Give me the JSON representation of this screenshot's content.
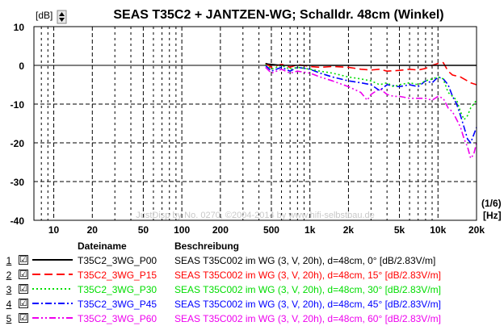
{
  "chart_data": {
    "type": "line",
    "title": "SEAS T35C2 + JANTZEN-WG; Schalldr. 48cm (Winkel)",
    "ylabel": "[dB]",
    "xlabel_unit": "(1/6)",
    "xlabel": "[Hz]",
    "watermark": "JustDisp by No. 0270, ©2004-2014 by www.hifi-selbstbau.de",
    "x_scale": "log",
    "xlim": [
      7,
      20000
    ],
    "ylim": [
      -40,
      10
    ],
    "grid": true,
    "y_ticks": [
      10,
      0,
      -10,
      -20,
      -30,
      -40
    ],
    "x_ticks": [
      {
        "v": 10,
        "t": "10"
      },
      {
        "v": 20,
        "t": "20"
      },
      {
        "v": 50,
        "t": "50"
      },
      {
        "v": 100,
        "t": "100"
      },
      {
        "v": 200,
        "t": "200"
      },
      {
        "v": 500,
        "t": "500"
      },
      {
        "v": 1000,
        "t": "1k"
      },
      {
        "v": 2000,
        "t": "2k"
      },
      {
        "v": 5000,
        "t": "5k"
      },
      {
        "v": 10000,
        "t": "10k"
      },
      {
        "v": 20000,
        "t": "20k"
      }
    ],
    "series": [
      {
        "name": "T35C2_3WG_P00",
        "color": "#000000",
        "dash": "solid",
        "x": [
          450,
          480,
          520,
          560,
          600,
          700,
          800,
          900,
          1000,
          1200,
          1500,
          2000,
          3000,
          5000,
          7000,
          9000,
          10000,
          11000,
          12000,
          15000,
          20000
        ],
        "y": [
          0.5,
          0.3,
          0.2,
          0.1,
          0,
          0,
          0,
          0,
          0,
          0,
          0,
          0,
          0,
          0,
          0,
          0,
          0,
          0,
          0,
          0,
          0
        ]
      },
      {
        "name": "T35C2_3WG_P15",
        "color": "#ff0000",
        "dash": "dash",
        "x": [
          450,
          500,
          600,
          700,
          800,
          1000,
          1200,
          1500,
          2000,
          2500,
          3000,
          3500,
          4000,
          5000,
          6000,
          7000,
          8000,
          9000,
          10000,
          11000,
          12000,
          13000,
          15000,
          18000,
          20000
        ],
        "y": [
          0.5,
          -0.5,
          0.3,
          -0.5,
          0.2,
          -0.3,
          -0.5,
          -0.3,
          -0.5,
          -1,
          -1.2,
          -1,
          -1.5,
          -1.3,
          -1,
          -1.2,
          -0.8,
          0,
          0.5,
          0.7,
          -1.5,
          -2.5,
          -3,
          -4.5,
          -5
        ]
      },
      {
        "name": "T35C2_3WG_P30",
        "color": "#00dd00",
        "dash": "dot",
        "x": [
          450,
          500,
          600,
          700,
          800,
          1000,
          1200,
          1500,
          2000,
          2500,
          3000,
          3500,
          4000,
          4500,
          5000,
          6000,
          7000,
          8000,
          9000,
          10000,
          11000,
          12000,
          13000,
          14000,
          15000,
          16000,
          17000,
          18000,
          20000
        ],
        "y": [
          0.2,
          -1,
          0,
          -1,
          -0.5,
          -1,
          -1.5,
          -2,
          -3,
          -3.5,
          -4,
          -5,
          -4.5,
          -5.5,
          -5,
          -4.5,
          -5,
          -4,
          -3.5,
          -3,
          -3.5,
          -7,
          -8,
          -9,
          -12,
          -14,
          -13,
          -11,
          -9
        ]
      },
      {
        "name": "T35C2_3WG_P45",
        "color": "#0000ff",
        "dash": "dashdot",
        "x": [
          450,
          500,
          600,
          700,
          800,
          1000,
          1200,
          1500,
          2000,
          2500,
          3000,
          3500,
          4000,
          5000,
          6000,
          7000,
          8000,
          9000,
          10000,
          11000,
          12000,
          13000,
          14000,
          15000,
          16000,
          17000,
          18000,
          20000
        ],
        "y": [
          0,
          -1.5,
          -0.5,
          -1.5,
          -0.5,
          -1,
          -2,
          -3,
          -4,
          -4.5,
          -5,
          -6.5,
          -5,
          -5.5,
          -5,
          -5.5,
          -4,
          -4.5,
          -3,
          -3.5,
          -5,
          -8,
          -10,
          -13,
          -16,
          -19,
          -20,
          -16
        ]
      },
      {
        "name": "T35C2_3WG_P60",
        "color": "#ee00ee",
        "dash": "dashdotdot",
        "x": [
          450,
          500,
          600,
          700,
          800,
          1000,
          1200,
          1500,
          2000,
          2500,
          2800,
          3000,
          3500,
          4000,
          4500,
          5000,
          6000,
          7000,
          8000,
          9000,
          10000,
          11000,
          12000,
          13000,
          14000,
          15000,
          16000,
          17000,
          18000,
          19000,
          20000
        ],
        "y": [
          -0.5,
          -2,
          -1,
          -2,
          -1.5,
          -2,
          -3,
          -4,
          -5.5,
          -7,
          -9,
          -7.5,
          -6,
          -7.5,
          -8,
          -8,
          -8.5,
          -8.5,
          -8.5,
          -9,
          -8,
          -8.5,
          -11,
          -12,
          -14,
          -16,
          -19,
          -21,
          -24,
          -23,
          -20
        ]
      }
    ]
  },
  "legend": {
    "col_name_header": "Dateiname",
    "col_desc_header": "Beschreibung",
    "rows": [
      {
        "num": "1",
        "check": "☑",
        "name": "T35C2_3WG_P00",
        "desc": "SEAS T35C002 im WG (3, V, 20h), d=48cm, 0° [dB/2.83V/m]",
        "color": "#000000"
      },
      {
        "num": "2",
        "check": "☑",
        "name": "T35C2_3WG_P15",
        "desc": "SEAS T35C002 im WG (3, V, 20h), d=48cm, 15° [dB/2.83V/m]",
        "color": "#ff0000"
      },
      {
        "num": "3",
        "check": "☑",
        "name": "T35C2_3WG_P30",
        "desc": "SEAS T35C002 im WG (3, V, 20h), d=48cm, 30° [dB/2.83V/m]",
        "color": "#00dd00"
      },
      {
        "num": "4",
        "check": "☑",
        "name": "T35C2_3WG_P45",
        "desc": "SEAS T35C002 im WG (3, V, 20h), d=48cm, 45° [dB/2.83V/m]",
        "color": "#0000ff"
      },
      {
        "num": "5",
        "check": "☑",
        "name": "T35C2_3WG_P60",
        "desc": "SEAS T35C002 im WG (3, V, 20h), d=48cm, 60° [dB/2.83V/m]",
        "color": "#ee00ee"
      }
    ]
  },
  "spin_icon": "up-down-spinner-icon"
}
